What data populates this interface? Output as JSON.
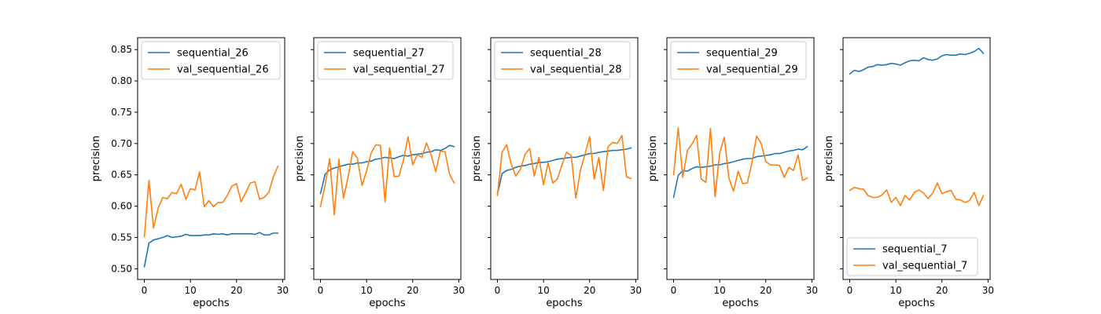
{
  "colors": {
    "train": "#1f77b4",
    "val": "#ff7f0e"
  },
  "chart_data": [
    {
      "type": "line",
      "xlabel": "epochs",
      "ylabel": "precision",
      "xlim": [
        -1.45,
        30.45
      ],
      "ylim": [
        0.483,
        0.869
      ],
      "xticks": [
        0,
        10,
        20,
        30
      ],
      "yticks": [
        0.5,
        0.55,
        0.6,
        0.65,
        0.7,
        0.75,
        0.8,
        0.85
      ],
      "ytick_labels_visible": true,
      "legend": "upper-left",
      "x": [
        0,
        1,
        2,
        3,
        4,
        5,
        6,
        7,
        8,
        9,
        10,
        11,
        12,
        13,
        14,
        15,
        16,
        17,
        18,
        19,
        20,
        21,
        22,
        23,
        24,
        25,
        26,
        27,
        28,
        29
      ],
      "series": [
        {
          "name": "sequential_26",
          "color": "train",
          "values": [
            0.503,
            0.541,
            0.546,
            0.548,
            0.55,
            0.553,
            0.55,
            0.551,
            0.552,
            0.555,
            0.553,
            0.553,
            0.553,
            0.554,
            0.554,
            0.556,
            0.555,
            0.556,
            0.554,
            0.556,
            0.556,
            0.556,
            0.556,
            0.556,
            0.555,
            0.558,
            0.554,
            0.554,
            0.557,
            0.557
          ]
        },
        {
          "name": "val_sequential_26",
          "color": "val",
          "values": [
            0.551,
            0.641,
            0.565,
            0.597,
            0.614,
            0.612,
            0.622,
            0.62,
            0.635,
            0.611,
            0.628,
            0.626,
            0.655,
            0.599,
            0.609,
            0.599,
            0.606,
            0.606,
            0.617,
            0.632,
            0.636,
            0.607,
            0.622,
            0.637,
            0.639,
            0.611,
            0.614,
            0.622,
            0.647,
            0.664
          ]
        }
      ]
    },
    {
      "type": "line",
      "xlabel": "epochs",
      "ylabel": "precision",
      "xlim": [
        -1.45,
        30.45
      ],
      "ylim": [
        0.483,
        0.869
      ],
      "xticks": [
        0,
        10,
        20,
        30
      ],
      "yticks": [
        0.5,
        0.55,
        0.6,
        0.65,
        0.7,
        0.75,
        0.8,
        0.85
      ],
      "ytick_labels_visible": false,
      "legend": "upper-left",
      "x": [
        0,
        1,
        2,
        3,
        4,
        5,
        6,
        7,
        8,
        9,
        10,
        11,
        12,
        13,
        14,
        15,
        16,
        17,
        18,
        19,
        20,
        21,
        22,
        23,
        24,
        25,
        26,
        27,
        28,
        29
      ],
      "series": [
        {
          "name": "sequential_27",
          "color": "train",
          "values": [
            0.62,
            0.651,
            0.658,
            0.661,
            0.663,
            0.665,
            0.667,
            0.667,
            0.669,
            0.669,
            0.671,
            0.672,
            0.675,
            0.676,
            0.678,
            0.677,
            0.676,
            0.679,
            0.681,
            0.68,
            0.682,
            0.683,
            0.684,
            0.686,
            0.687,
            0.69,
            0.689,
            0.692,
            0.697,
            0.695
          ]
        },
        {
          "name": "val_sequential_27",
          "color": "val",
          "values": [
            0.599,
            0.634,
            0.676,
            0.586,
            0.675,
            0.613,
            0.647,
            0.687,
            0.677,
            0.633,
            0.656,
            0.685,
            0.698,
            0.697,
            0.607,
            0.693,
            0.647,
            0.648,
            0.673,
            0.711,
            0.666,
            0.682,
            0.678,
            0.701,
            0.682,
            0.655,
            0.688,
            0.687,
            0.651,
            0.637
          ]
        }
      ]
    },
    {
      "type": "line",
      "xlabel": "epochs",
      "ylabel": "precision",
      "xlim": [
        -1.45,
        30.45
      ],
      "ylim": [
        0.483,
        0.869
      ],
      "xticks": [
        0,
        10,
        20,
        30
      ],
      "yticks": [
        0.5,
        0.55,
        0.6,
        0.65,
        0.7,
        0.75,
        0.8,
        0.85
      ],
      "ytick_labels_visible": false,
      "legend": "upper-left",
      "x": [
        0,
        1,
        2,
        3,
        4,
        5,
        6,
        7,
        8,
        9,
        10,
        11,
        12,
        13,
        14,
        15,
        16,
        17,
        18,
        19,
        20,
        21,
        22,
        23,
        24,
        25,
        26,
        27,
        28,
        29
      ],
      "series": [
        {
          "name": "sequential_28",
          "color": "train",
          "values": [
            0.619,
            0.652,
            0.657,
            0.659,
            0.662,
            0.664,
            0.665,
            0.667,
            0.668,
            0.67,
            0.67,
            0.671,
            0.673,
            0.675,
            0.676,
            0.677,
            0.678,
            0.678,
            0.68,
            0.682,
            0.684,
            0.684,
            0.686,
            0.687,
            0.688,
            0.689,
            0.689,
            0.69,
            0.691,
            0.693
          ]
        },
        {
          "name": "val_sequential_28",
          "color": "val",
          "values": [
            0.617,
            0.686,
            0.698,
            0.667,
            0.648,
            0.659,
            0.683,
            0.692,
            0.648,
            0.678,
            0.634,
            0.669,
            0.637,
            0.643,
            0.666,
            0.686,
            0.681,
            0.613,
            0.657,
            0.683,
            0.711,
            0.643,
            0.678,
            0.625,
            0.695,
            0.702,
            0.7,
            0.713,
            0.647,
            0.644
          ]
        }
      ]
    },
    {
      "type": "line",
      "xlabel": "epochs",
      "ylabel": "precision",
      "xlim": [
        -1.45,
        30.45
      ],
      "ylim": [
        0.483,
        0.869
      ],
      "xticks": [
        0,
        10,
        20,
        30
      ],
      "yticks": [
        0.5,
        0.55,
        0.6,
        0.65,
        0.7,
        0.75,
        0.8,
        0.85
      ],
      "ytick_labels_visible": false,
      "legend": "upper-left",
      "x": [
        0,
        1,
        2,
        3,
        4,
        5,
        6,
        7,
        8,
        9,
        10,
        11,
        12,
        13,
        14,
        15,
        16,
        17,
        18,
        19,
        20,
        21,
        22,
        23,
        24,
        25,
        26,
        27,
        28,
        29
      ],
      "series": [
        {
          "name": "sequential_29",
          "color": "train",
          "values": [
            0.614,
            0.649,
            0.657,
            0.656,
            0.66,
            0.663,
            0.662,
            0.663,
            0.664,
            0.666,
            0.666,
            0.668,
            0.669,
            0.671,
            0.673,
            0.675,
            0.676,
            0.676,
            0.679,
            0.68,
            0.681,
            0.682,
            0.684,
            0.684,
            0.686,
            0.688,
            0.689,
            0.691,
            0.69,
            0.695
          ]
        },
        {
          "name": "val_sequential_29",
          "color": "val",
          "values": [
            0.65,
            0.725,
            0.646,
            0.689,
            0.699,
            0.713,
            0.643,
            0.638,
            0.724,
            0.615,
            0.685,
            0.71,
            0.645,
            0.624,
            0.656,
            0.636,
            0.637,
            0.67,
            0.712,
            0.7,
            0.671,
            0.666,
            0.666,
            0.665,
            0.646,
            0.662,
            0.657,
            0.682,
            0.641,
            0.645
          ]
        }
      ]
    },
    {
      "type": "line",
      "xlabel": "epochs",
      "ylabel": "precision",
      "xlim": [
        -1.45,
        30.45
      ],
      "ylim": [
        0.483,
        0.869
      ],
      "xticks": [
        0,
        10,
        20,
        30
      ],
      "yticks": [
        0.5,
        0.55,
        0.6,
        0.65,
        0.7,
        0.75,
        0.8,
        0.85
      ],
      "ytick_labels_visible": false,
      "legend": "lower-left",
      "x": [
        0,
        1,
        2,
        3,
        4,
        5,
        6,
        7,
        8,
        9,
        10,
        11,
        12,
        13,
        14,
        15,
        16,
        17,
        18,
        19,
        20,
        21,
        22,
        23,
        24,
        25,
        26,
        27,
        28,
        29
      ],
      "series": [
        {
          "name": "sequential_7",
          "color": "train",
          "values": [
            0.811,
            0.817,
            0.815,
            0.818,
            0.822,
            0.823,
            0.826,
            0.825,
            0.826,
            0.828,
            0.827,
            0.825,
            0.829,
            0.832,
            0.833,
            0.832,
            0.837,
            0.834,
            0.833,
            0.835,
            0.84,
            0.842,
            0.841,
            0.841,
            0.843,
            0.842,
            0.844,
            0.847,
            0.852,
            0.844
          ]
        },
        {
          "name": "val_sequential_7",
          "color": "val",
          "values": [
            0.625,
            0.63,
            0.628,
            0.627,
            0.617,
            0.614,
            0.614,
            0.618,
            0.626,
            0.606,
            0.614,
            0.601,
            0.617,
            0.61,
            0.622,
            0.626,
            0.621,
            0.612,
            0.621,
            0.637,
            0.62,
            0.623,
            0.625,
            0.611,
            0.61,
            0.606,
            0.609,
            0.622,
            0.601,
            0.617
          ]
        }
      ]
    }
  ]
}
